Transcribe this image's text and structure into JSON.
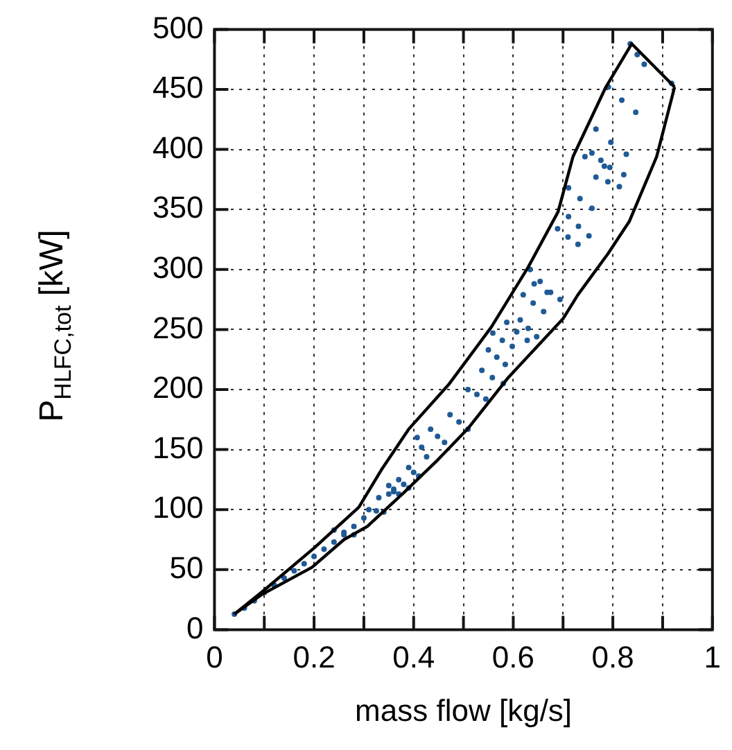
{
  "chart_data": {
    "type": "scatter",
    "xlabel": "mass flow [kg/s]",
    "ylabel": "P$_{HLFC,tot}$ [kW]",
    "xlim": [
      0,
      1
    ],
    "ylim": [
      0,
      500
    ],
    "xticks": [
      0,
      {
        "value": 0.1,
        "label": null
      },
      0.2,
      {
        "value": 0.3,
        "label": null
      },
      0.4,
      {
        "value": 0.5,
        "label": null
      },
      0.6,
      {
        "value": 0.7,
        "label": null
      },
      0.8,
      {
        "value": 0.9,
        "label": null
      },
      1
    ],
    "yticks": [
      0,
      50,
      100,
      150,
      200,
      250,
      300,
      350,
      400,
      450,
      500
    ],
    "grid": true,
    "legend": false,
    "series": [
      {
        "marker": "circle",
        "color": "#1f5a96",
        "x": [
          0.04,
          0.06,
          0.08,
          0.1,
          0.12,
          0.14,
          0.16,
          0.18,
          0.2,
          0.22,
          0.24,
          0.26,
          0.28,
          0.3,
          0.24,
          0.26,
          0.28,
          0.31,
          0.325,
          0.34,
          0.33,
          0.35,
          0.36,
          0.35,
          0.36,
          0.37,
          0.37,
          0.38,
          0.39,
          0.39,
          0.4,
          0.41,
          0.407,
          0.416,
          0.426,
          0.434,
          0.448,
          0.462,
          0.473,
          0.491,
          0.509,
          0.509,
          0.527,
          0.545,
          0.537,
          0.558,
          0.58,
          0.55,
          0.567,
          0.584,
          0.559,
          0.578,
          0.598,
          0.587,
          0.607,
          0.628,
          0.614,
          0.63,
          0.647,
          0.62,
          0.64,
          0.661,
          0.642,
          0.668,
          0.694,
          0.634,
          0.654,
          0.675,
          0.689,
          0.71,
          0.73,
          0.711,
          0.731,
          0.752,
          0.711,
          0.734,
          0.758,
          0.744,
          0.783,
          0.822,
          0.758,
          0.776,
          0.794,
          0.766,
          0.79,
          0.813,
          0.766,
          0.796,
          0.827,
          0.791,
          0.818,
          0.846,
          0.835,
          0.849,
          0.863,
          0.918
        ],
        "values": [
          13,
          18,
          24,
          31,
          37,
          43,
          49,
          55,
          61,
          67,
          73,
          79,
          86,
          93,
          83,
          81,
          79,
          100,
          99,
          98,
          110,
          113,
          115,
          120,
          117,
          113,
          125,
          121,
          118,
          135,
          131,
          128,
          160,
          152,
          144,
          167,
          161,
          156,
          179,
          173,
          167,
          200,
          196,
          192,
          216,
          210,
          205,
          233,
          227,
          221,
          247,
          241,
          236,
          256,
          248,
          241,
          258,
          251,
          244,
          279,
          272,
          265,
          288,
          281,
          275,
          300,
          290,
          281,
          334,
          327,
          321,
          344,
          336,
          328,
          368,
          359,
          351,
          394,
          386,
          379,
          397,
          391,
          385,
          377,
          373,
          369,
          417,
          406,
          396,
          452,
          441,
          431,
          488,
          479,
          471,
          455
        ]
      },
      {
        "type": "line",
        "marker": "none",
        "line_style": "solid",
        "color": "#000000",
        "x": [
          0.04,
          0.1,
          0.2,
          0.29,
          0.335,
          0.39,
          0.47,
          0.556,
          0.63,
          0.69,
          0.72,
          0.786,
          0.838,
          0.924
        ],
        "values": [
          13,
          33,
          68,
          102,
          133,
          167,
          204,
          252,
          302,
          348,
          394,
          452,
          488,
          452
        ]
      },
      {
        "type": "line",
        "marker": "none",
        "line_style": "solid",
        "color": "#000000",
        "x": [
          0.04,
          0.094,
          0.196,
          0.26,
          0.307,
          0.38,
          0.445,
          0.51,
          0.59,
          0.7,
          0.73,
          0.79,
          0.833,
          0.888,
          0.924
        ],
        "values": [
          13,
          29,
          52,
          75,
          86,
          114,
          140,
          168,
          210,
          259,
          279,
          313,
          340,
          394,
          452
        ]
      }
    ]
  }
}
